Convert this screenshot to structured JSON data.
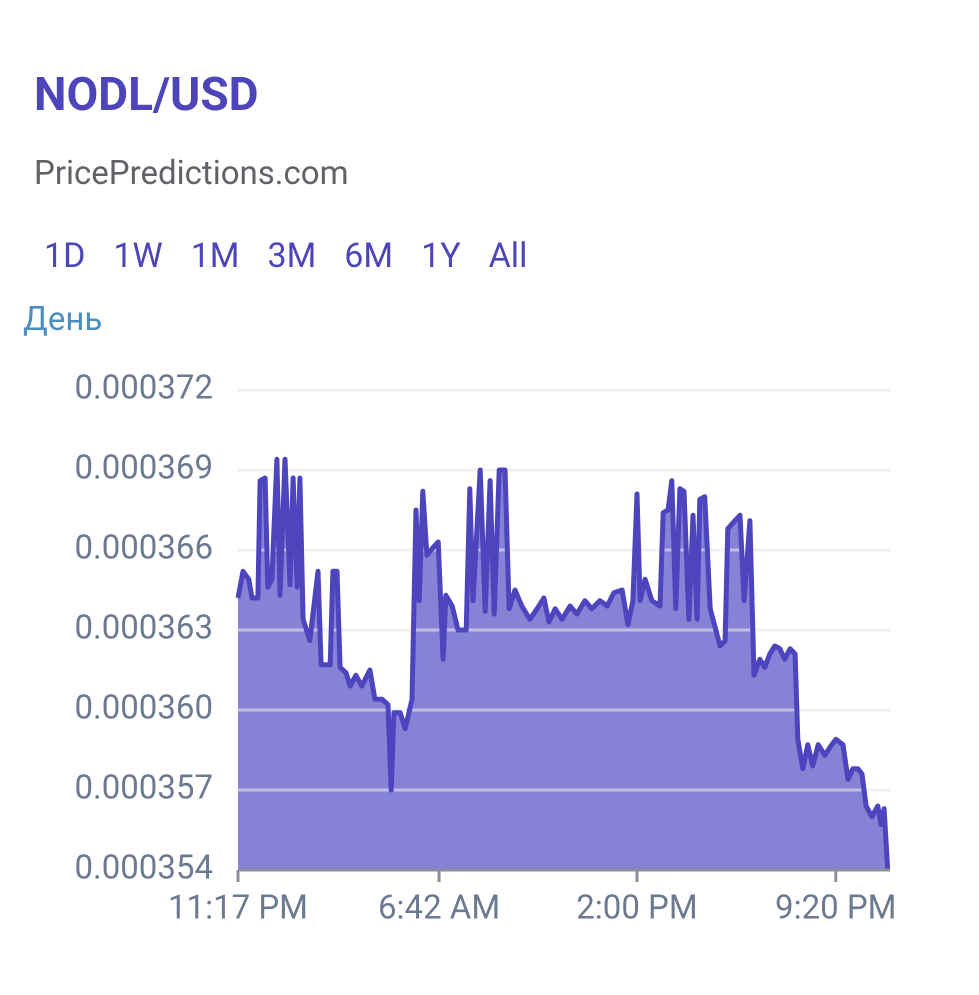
{
  "header": {
    "title": "NODL/USD",
    "subtitle": "PricePredictions.com"
  },
  "range_buttons": [
    "1D",
    "1W",
    "1M",
    "3M",
    "6M",
    "1Y",
    "All"
  ],
  "period_label": "День",
  "chart_data": {
    "type": "area",
    "color": "#4c45bd",
    "fill": "#8782d6",
    "grid": true,
    "xlim": [
      0,
      1443
    ],
    "ylim": [
      0.000354,
      0.000372
    ],
    "yticks": [
      0.000372,
      0.000369,
      0.000366,
      0.000363,
      {
        "value": 0.00036,
        "label": "0.000360"
      },
      0.000357,
      0.000354
    ],
    "xticks": [
      {
        "value": 0,
        "label": "11:17 PM"
      },
      {
        "value": 445,
        "label": "6:42 AM"
      },
      {
        "value": 883,
        "label": "2:00 PM"
      },
      {
        "value": 1323,
        "label": "9:20 PM"
      }
    ],
    "x": [
      0,
      11,
      24,
      31,
      44,
      49,
      60,
      66,
      75,
      86,
      93,
      104,
      115,
      122,
      131,
      137,
      144,
      159,
      177,
      184,
      204,
      210,
      219,
      226,
      239,
      248,
      261,
      274,
      292,
      303,
      319,
      332,
      339,
      345,
      359,
      370,
      385,
      394,
      401,
      409,
      418,
      432,
      443,
      454,
      460,
      474,
      487,
      505,
      513,
      520,
      536,
      547,
      558,
      567,
      578,
      591,
      600,
      613,
      628,
      646,
      662,
      677,
      688,
      702,
      717,
      735,
      750,
      768,
      783,
      801,
      817,
      832,
      850,
      863,
      874,
      883,
      890,
      901,
      916,
      934,
      941,
      952,
      960,
      969,
      978,
      987,
      998,
      1007,
      1016,
      1022,
      1033,
      1045,
      1056,
      1067,
      1078,
      1084,
      1100,
      1111,
      1120,
      1133,
      1142,
      1155,
      1166,
      1177,
      1188,
      1199,
      1210,
      1222,
      1233,
      1239,
      1250,
      1261,
      1272,
      1284,
      1299,
      1310,
      1323,
      1339,
      1350,
      1361,
      1372,
      1381,
      1390,
      1403,
      1416,
      1423,
      1430,
      1438
    ],
    "values": [
      0.0003642,
      0.0003652,
      0.0003649,
      0.0003642,
      0.0003642,
      0.0003686,
      0.0003687,
      0.0003646,
      0.0003649,
      0.0003694,
      0.0003643,
      0.0003694,
      0.0003647,
      0.0003687,
      0.0003646,
      0.0003687,
      0.0003634,
      0.0003626,
      0.0003652,
      0.0003617,
      0.0003617,
      0.0003652,
      0.0003652,
      0.0003616,
      0.0003614,
      0.0003609,
      0.0003613,
      0.0003609,
      0.0003615,
      0.0003604,
      0.0003604,
      0.0003602,
      0.000357,
      0.0003599,
      0.0003599,
      0.0003593,
      0.0003604,
      0.0003675,
      0.0003641,
      0.0003682,
      0.0003658,
      0.0003661,
      0.0003663,
      0.0003619,
      0.0003643,
      0.0003639,
      0.000363,
      0.000363,
      0.0003683,
      0.0003641,
      0.000369,
      0.0003637,
      0.0003686,
      0.0003636,
      0.000369,
      0.000369,
      0.0003638,
      0.0003645,
      0.0003639,
      0.0003634,
      0.0003638,
      0.0003642,
      0.0003633,
      0.0003638,
      0.0003634,
      0.0003639,
      0.0003636,
      0.0003641,
      0.0003638,
      0.0003641,
      0.0003639,
      0.0003644,
      0.0003645,
      0.0003632,
      0.0003641,
      0.0003681,
      0.0003641,
      0.0003649,
      0.0003641,
      0.0003639,
      0.0003674,
      0.0003675,
      0.0003686,
      0.0003638,
      0.0003683,
      0.0003682,
      0.0003634,
      0.0003673,
      0.0003634,
      0.0003679,
      0.000368,
      0.0003638,
      0.0003631,
      0.0003624,
      0.0003626,
      0.0003668,
      0.0003671,
      0.0003673,
      0.0003641,
      0.0003671,
      0.0003613,
      0.0003619,
      0.0003616,
      0.0003621,
      0.0003624,
      0.0003623,
      0.0003619,
      0.0003623,
      0.0003621,
      0.0003589,
      0.0003578,
      0.0003587,
      0.0003579,
      0.0003587,
      0.0003583,
      0.0003586,
      0.0003589,
      0.0003587,
      0.0003574,
      0.0003578,
      0.0003578,
      0.0003576,
      0.0003564,
      0.000356,
      0.0003564,
      0.0003557,
      0.0003563,
      0.000354
    ]
  }
}
